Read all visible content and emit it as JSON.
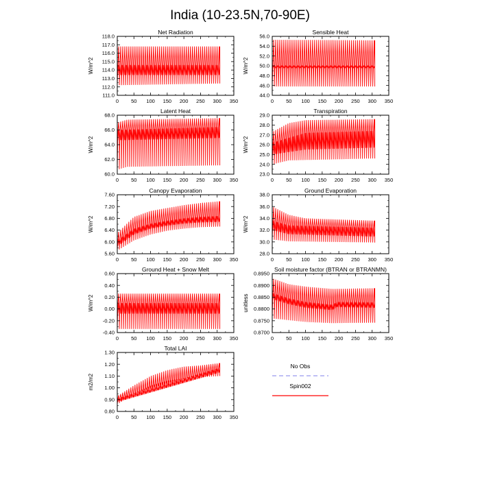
{
  "figure": {
    "title": "India (10-23.5N,70-90E)"
  },
  "chart_data": [
    {
      "type": "line",
      "title": "Net Radiation",
      "ylabel": "W/m^2",
      "xlim": [
        0,
        350
      ],
      "ylim": [
        111.0,
        118.0
      ],
      "xticks": [
        "0",
        "50",
        "100",
        "150",
        "200",
        "250",
        "300",
        "350"
      ],
      "yticks": [
        "111.0",
        "112.0",
        "113.0",
        "114.0",
        "115.0",
        "116.0",
        "117.0",
        "118.0"
      ],
      "series": [
        {
          "name": "Spin002",
          "color": "#ff0000",
          "x_end": 308,
          "cycles": 50,
          "env_hi": [
            [
              0,
              116.8
            ],
            [
              308,
              116.8
            ]
          ],
          "env_lo": [
            [
              0,
              112.2
            ],
            [
              308,
              112.4
            ]
          ],
          "mid_hi": [
            [
              0,
              114.6
            ],
            [
              308,
              114.6
            ]
          ],
          "mid_lo": [
            [
              0,
              113.4
            ],
            [
              308,
              113.4
            ]
          ]
        }
      ]
    },
    {
      "type": "line",
      "title": "Sensible Heat",
      "ylabel": "W/m^2",
      "xlim": [
        0,
        350
      ],
      "ylim": [
        44.0,
        56.0
      ],
      "xticks": [
        "0",
        "50",
        "100",
        "150",
        "200",
        "250",
        "300",
        "350"
      ],
      "yticks": [
        "44.0",
        "46.0",
        "48.0",
        "50.0",
        "52.0",
        "54.0",
        "56.0"
      ],
      "series": [
        {
          "name": "Spin002",
          "color": "#ff0000",
          "x_end": 308,
          "cycles": 50,
          "env_hi": [
            [
              0,
              55.3
            ],
            [
              308,
              55.2
            ]
          ],
          "env_lo": [
            [
              0,
              45.8
            ],
            [
              308,
              45.8
            ]
          ],
          "mid_hi": [
            [
              0,
              50.0
            ],
            [
              308,
              50.0
            ]
          ],
          "mid_lo": [
            [
              0,
              49.6
            ],
            [
              308,
              49.6
            ]
          ]
        }
      ]
    },
    {
      "type": "line",
      "title": "Latent Heat",
      "ylabel": "W/m^2",
      "xlim": [
        0,
        350
      ],
      "ylim": [
        60.0,
        68.0
      ],
      "xticks": [
        "0",
        "50",
        "100",
        "150",
        "200",
        "250",
        "300",
        "350"
      ],
      "yticks": [
        "60.0",
        "62.0",
        "64.0",
        "66.0",
        "68.0"
      ],
      "series": [
        {
          "name": "Spin002",
          "color": "#ff0000",
          "x_end": 308,
          "cycles": 50,
          "env_hi": [
            [
              0,
              67.0
            ],
            [
              30,
              67.4
            ],
            [
              308,
              67.6
            ]
          ],
          "env_lo": [
            [
              0,
              60.6
            ],
            [
              30,
              61.0
            ],
            [
              308,
              61.2
            ]
          ],
          "mid_hi": [
            [
              0,
              66.0
            ],
            [
              308,
              66.4
            ]
          ],
          "mid_lo": [
            [
              0,
              64.6
            ],
            [
              308,
              64.9
            ]
          ]
        }
      ]
    },
    {
      "type": "line",
      "title": "Transpiration",
      "ylabel": "W/m^2",
      "xlim": [
        0,
        350
      ],
      "ylim": [
        23.0,
        29.0
      ],
      "xticks": [
        "0",
        "50",
        "100",
        "150",
        "200",
        "250",
        "300",
        "350"
      ],
      "yticks": [
        "23.0",
        "24.0",
        "25.0",
        "26.0",
        "27.0",
        "28.0",
        "29.0"
      ],
      "series": [
        {
          "name": "Spin002",
          "color": "#ff0000",
          "x_end": 308,
          "cycles": 50,
          "env_hi": [
            [
              0,
              27.3
            ],
            [
              50,
              28.2
            ],
            [
              100,
              28.5
            ],
            [
              308,
              28.6
            ]
          ],
          "env_lo": [
            [
              0,
              24.0
            ],
            [
              50,
              24.4
            ],
            [
              308,
              24.6
            ]
          ],
          "mid_hi": [
            [
              0,
              26.2
            ],
            [
              100,
              27.2
            ],
            [
              308,
              27.4
            ]
          ],
          "mid_lo": [
            [
              0,
              25.0
            ],
            [
              100,
              25.5
            ],
            [
              308,
              25.7
            ]
          ]
        }
      ]
    },
    {
      "type": "line",
      "title": "Canopy Evaporation",
      "ylabel": "W/m^2",
      "xlim": [
        0,
        350
      ],
      "ylim": [
        5.6,
        7.6
      ],
      "xticks": [
        "0",
        "50",
        "100",
        "150",
        "200",
        "250",
        "300",
        "350"
      ],
      "yticks": [
        "5.60",
        "6.00",
        "6.40",
        "6.80",
        "7.20",
        "7.60"
      ],
      "series": [
        {
          "name": "Spin002",
          "color": "#ff0000",
          "x_end": 308,
          "cycles": 50,
          "env_hi": [
            [
              0,
              6.3
            ],
            [
              50,
              6.85
            ],
            [
              100,
              7.05
            ],
            [
              150,
              7.15
            ],
            [
              200,
              7.25
            ],
            [
              250,
              7.32
            ],
            [
              308,
              7.38
            ]
          ],
          "env_lo": [
            [
              0,
              5.7
            ],
            [
              50,
              6.05
            ],
            [
              100,
              6.25
            ],
            [
              150,
              6.38
            ],
            [
              200,
              6.45
            ],
            [
              250,
              6.5
            ],
            [
              308,
              6.52
            ]
          ],
          "mid_hi": [
            [
              0,
              6.05
            ],
            [
              50,
              6.45
            ],
            [
              100,
              6.62
            ],
            [
              150,
              6.72
            ],
            [
              200,
              6.8
            ],
            [
              250,
              6.85
            ],
            [
              308,
              6.88
            ]
          ],
          "mid_lo": [
            [
              0,
              5.85
            ],
            [
              50,
              6.25
            ],
            [
              100,
              6.45
            ],
            [
              150,
              6.55
            ],
            [
              200,
              6.62
            ],
            [
              250,
              6.66
            ],
            [
              308,
              6.68
            ]
          ]
        }
      ]
    },
    {
      "type": "line",
      "title": "Ground Evaporation",
      "ylabel": "W/m^2",
      "xlim": [
        0,
        350
      ],
      "ylim": [
        28.0,
        38.0
      ],
      "xticks": [
        "0",
        "50",
        "100",
        "150",
        "200",
        "250",
        "300",
        "350"
      ],
      "yticks": [
        "28.0",
        "30.0",
        "32.0",
        "34.0",
        "36.0",
        "38.0"
      ],
      "series": [
        {
          "name": "Spin002",
          "color": "#ff0000",
          "x_end": 308,
          "cycles": 50,
          "env_hi": [
            [
              0,
              36.0
            ],
            [
              50,
              34.6
            ],
            [
              100,
              34.0
            ],
            [
              308,
              33.6
            ]
          ],
          "env_lo": [
            [
              0,
              30.4
            ],
            [
              50,
              30.1
            ],
            [
              308,
              29.9
            ]
          ],
          "mid_hi": [
            [
              0,
              33.6
            ],
            [
              50,
              32.8
            ],
            [
              308,
              32.4
            ]
          ],
          "mid_lo": [
            [
              0,
              32.0
            ],
            [
              50,
              31.3
            ],
            [
              308,
              30.9
            ]
          ]
        }
      ]
    },
    {
      "type": "line",
      "title": "Ground Heat + Snow Melt",
      "ylabel": "W/m^2",
      "xlim": [
        0,
        350
      ],
      "ylim": [
        -0.4,
        0.6
      ],
      "xticks": [
        "0",
        "50",
        "100",
        "150",
        "200",
        "250",
        "300",
        "350"
      ],
      "yticks": [
        "-0.40",
        "-0.20",
        "0.00",
        "0.20",
        "0.40",
        "0.60"
      ],
      "series": [
        {
          "name": "Spin002",
          "color": "#ff0000",
          "x_end": 308,
          "cycles": 50,
          "env_hi": [
            [
              0,
              0.26
            ],
            [
              308,
              0.26
            ]
          ],
          "env_lo": [
            [
              0,
              -0.34
            ],
            [
              308,
              -0.34
            ]
          ],
          "mid_hi": [
            [
              0,
              0.1
            ],
            [
              308,
              0.1
            ]
          ],
          "mid_lo": [
            [
              0,
              -0.08
            ],
            [
              308,
              -0.08
            ]
          ]
        }
      ]
    },
    {
      "type": "line",
      "title": "Soil moisture factor (BTRAN or BTRANMN)",
      "ylabel": "unitless",
      "xlim": [
        0,
        350
      ],
      "ylim": [
        0.87,
        0.895
      ],
      "xticks": [
        "0",
        "50",
        "100",
        "150",
        "200",
        "250",
        "300",
        "350"
      ],
      "yticks": [
        "0.8700",
        "0.8750",
        "0.8800",
        "0.8850",
        "0.8900",
        "0.8950"
      ],
      "series": [
        {
          "name": "Spin002",
          "color": "#ff0000",
          "x_end": 308,
          "cycles": 50,
          "env_hi": [
            [
              0,
              0.893
            ],
            [
              50,
              0.8905
            ],
            [
              100,
              0.8895
            ],
            [
              180,
              0.8885
            ],
            [
              308,
              0.8888
            ]
          ],
          "env_lo": [
            [
              0,
              0.876
            ],
            [
              100,
              0.8745
            ],
            [
              180,
              0.874
            ],
            [
              308,
              0.8742
            ]
          ],
          "mid_hi": [
            [
              0,
              0.8868
            ],
            [
              50,
              0.8845
            ],
            [
              100,
              0.883
            ],
            [
              180,
              0.8818
            ],
            [
              195,
              0.883
            ],
            [
              308,
              0.8828
            ]
          ],
          "mid_lo": [
            [
              0,
              0.8842
            ],
            [
              50,
              0.882
            ],
            [
              100,
              0.8805
            ],
            [
              180,
              0.8795
            ],
            [
              195,
              0.8808
            ],
            [
              308,
              0.8805
            ]
          ]
        }
      ]
    },
    {
      "type": "line",
      "title": "Total LAI",
      "ylabel": "m2/m2",
      "xlim": [
        0,
        350
      ],
      "ylim": [
        0.8,
        1.3
      ],
      "xticks": [
        "0",
        "50",
        "100",
        "150",
        "200",
        "250",
        "300",
        "350"
      ],
      "yticks": [
        "0.80",
        "0.90",
        "1.00",
        "1.10",
        "1.20",
        "1.30"
      ],
      "series": [
        {
          "name": "Spin002",
          "color": "#ff0000",
          "x_end": 308,
          "cycles": 50,
          "env_hi": [
            [
              0,
              0.93
            ],
            [
              50,
              1.02
            ],
            [
              100,
              1.1
            ],
            [
              150,
              1.15
            ],
            [
              200,
              1.18
            ],
            [
              250,
              1.19
            ],
            [
              308,
              1.21
            ]
          ],
          "env_lo": [
            [
              0,
              0.86
            ],
            [
              50,
              0.95
            ],
            [
              100,
              1.02
            ],
            [
              150,
              1.06
            ],
            [
              200,
              1.08
            ],
            [
              250,
              1.09
            ],
            [
              308,
              1.1
            ]
          ],
          "mid_hi": [
            [
              0,
              0.91
            ],
            [
              308,
              1.17
            ]
          ],
          "mid_lo": [
            [
              0,
              0.88
            ],
            [
              308,
              1.13
            ]
          ]
        }
      ]
    }
  ],
  "legend": {
    "entries": [
      {
        "label": "No Obs",
        "color": "#9999ee",
        "dash": true
      },
      {
        "label": "Spin002",
        "color": "#ff0000",
        "dash": false
      }
    ]
  }
}
